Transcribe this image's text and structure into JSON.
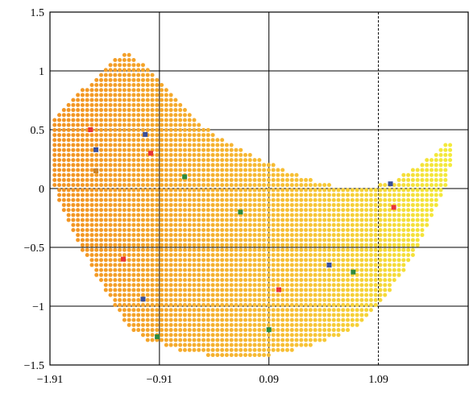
{
  "chart_data": {
    "type": "scatter",
    "title": "",
    "xlabel": "",
    "ylabel": "",
    "xlim": [
      -1.91,
      1.91
    ],
    "ylim": [
      -1.5,
      1.5
    ],
    "x_ticks": [
      -1.91,
      -0.91,
      0.09,
      1.09
    ],
    "x_tick_labels": [
      "−1.91",
      "−0.91",
      "0.09",
      "1.09"
    ],
    "y_ticks": [
      -1.5,
      -1,
      -0.5,
      0,
      0.5,
      1,
      1.5
    ],
    "y_tick_labels": [
      "−1.5",
      "−1",
      "−0.5",
      "0",
      "0.5",
      "1",
      "1.5"
    ],
    "grid": true,
    "grid_style": "solid black; x = 1.09 dashed",
    "dashed_x_gridlines": [
      1.09
    ],
    "legend": "none",
    "point_spacing": 0.0425,
    "region": {
      "description_of_filled_area": "dense grid of dots forming a crescent / boomerang shape",
      "x_range": [
        -1.91,
        1.79
      ],
      "upper_boundary": [
        [
          -1.91,
          0.55
        ],
        [
          -1.75,
          0.72
        ],
        [
          -1.45,
          0.98
        ],
        [
          -1.3,
          1.12
        ],
        [
          -1.2,
          1.16
        ],
        [
          -0.98,
          1.0
        ],
        [
          -0.78,
          0.78
        ],
        [
          -0.55,
          0.56
        ],
        [
          -0.3,
          0.4
        ],
        [
          0.0,
          0.26
        ],
        [
          0.3,
          0.14
        ],
        [
          0.6,
          0.04
        ],
        [
          0.9,
          -0.01
        ],
        [
          1.2,
          0.05
        ],
        [
          1.5,
          0.22
        ],
        [
          1.68,
          0.36
        ],
        [
          1.75,
          0.4
        ],
        [
          1.79,
          0.36
        ]
      ],
      "lower_boundary": [
        [
          -1.91,
          0.55
        ],
        [
          -1.91,
          0.1
        ],
        [
          -1.8,
          -0.18
        ],
        [
          -1.6,
          -0.55
        ],
        [
          -1.4,
          -0.88
        ],
        [
          -1.2,
          -1.18
        ],
        [
          -1.0,
          -1.3
        ],
        [
          -0.7,
          -1.38
        ],
        [
          -0.4,
          -1.43
        ],
        [
          -0.1,
          -1.43
        ],
        [
          0.1,
          -1.42
        ],
        [
          0.3,
          -1.38
        ],
        [
          0.55,
          -1.32
        ],
        [
          0.85,
          -1.2
        ],
        [
          1.05,
          -1.05
        ],
        [
          1.25,
          -0.8
        ],
        [
          1.45,
          -0.5
        ],
        [
          1.6,
          -0.2
        ],
        [
          1.72,
          0.05
        ],
        [
          1.79,
          0.36
        ]
      ]
    },
    "gradient_colors": [
      "#f29223",
      "#f7c236",
      "#f3ec3b"
    ],
    "gradient_stops_x": [
      -1.91,
      0.4,
      1.79
    ],
    "series": [
      {
        "color": "#e8343a",
        "points": [
          [
            -1.54,
            0.5
          ],
          [
            -1.24,
            -0.6
          ],
          [
            -0.99,
            0.3
          ],
          [
            0.18,
            -0.86
          ],
          [
            1.23,
            -0.16
          ]
        ]
      },
      {
        "color": "#3a4f9a",
        "points": [
          [
            -1.49,
            0.33
          ],
          [
            -1.04,
            0.46
          ],
          [
            -1.06,
            -0.94
          ],
          [
            0.64,
            -0.65
          ],
          [
            1.2,
            0.04
          ]
        ]
      },
      {
        "color": "#2e8b3f",
        "points": [
          [
            -0.68,
            0.1
          ],
          [
            -0.17,
            -0.2
          ],
          [
            0.09,
            -1.2
          ],
          [
            -0.93,
            -1.26
          ],
          [
            0.86,
            -0.71
          ]
        ]
      },
      {
        "color": "#c8822a",
        "points": [
          [
            -1.49,
            0.15
          ]
        ]
      }
    ]
  }
}
